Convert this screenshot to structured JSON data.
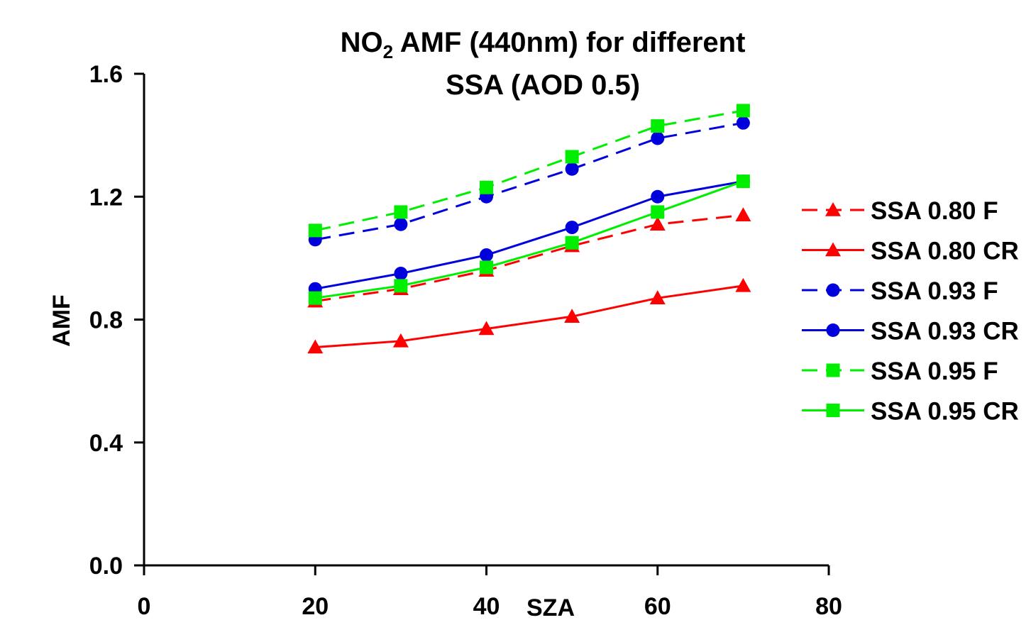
{
  "chart_data": {
    "type": "line",
    "title_line1_main": "NO",
    "title_line1_sub": "2",
    "title_line1_rest": " AMF (440nm) for different",
    "title_line2": "SSA (AOD 0.5)",
    "xlabel": "SZA",
    "ylabel": "AMF",
    "xlim": [
      0,
      80
    ],
    "ylim": [
      0.0,
      1.6
    ],
    "xticks": [
      "0",
      "20",
      "40",
      "60",
      "80"
    ],
    "yticks": [
      "0.0",
      "0.4",
      "0.8",
      "1.2",
      "1.6"
    ],
    "grid": false,
    "legend_position": "right",
    "x": [
      20,
      30,
      40,
      50,
      60,
      70
    ],
    "series": [
      {
        "name": "SSA 0.80 F",
        "color": "#ff0000",
        "dash": true,
        "marker": "triangle",
        "values": [
          0.86,
          0.9,
          0.96,
          1.04,
          1.11,
          1.14
        ]
      },
      {
        "name": "SSA 0.80 CR",
        "color": "#ff0000",
        "dash": false,
        "marker": "triangle",
        "values": [
          0.71,
          0.73,
          0.77,
          0.81,
          0.87,
          0.91
        ]
      },
      {
        "name": "SSA 0.93 F",
        "color": "#0000dd",
        "dash": true,
        "marker": "circle",
        "values": [
          1.06,
          1.11,
          1.2,
          1.29,
          1.39,
          1.44
        ]
      },
      {
        "name": "SSA 0.93 CR",
        "color": "#0000dd",
        "dash": false,
        "marker": "circle",
        "values": [
          0.9,
          0.95,
          1.01,
          1.1,
          1.2,
          1.25
        ]
      },
      {
        "name": "SSA 0.95 F",
        "color": "#00ee00",
        "dash": true,
        "marker": "square",
        "values": [
          1.09,
          1.15,
          1.23,
          1.33,
          1.43,
          1.48
        ]
      },
      {
        "name": "SSA 0.95 CR",
        "color": "#00ee00",
        "dash": false,
        "marker": "square",
        "values": [
          0.87,
          0.91,
          0.97,
          1.05,
          1.15,
          1.25
        ]
      }
    ]
  }
}
